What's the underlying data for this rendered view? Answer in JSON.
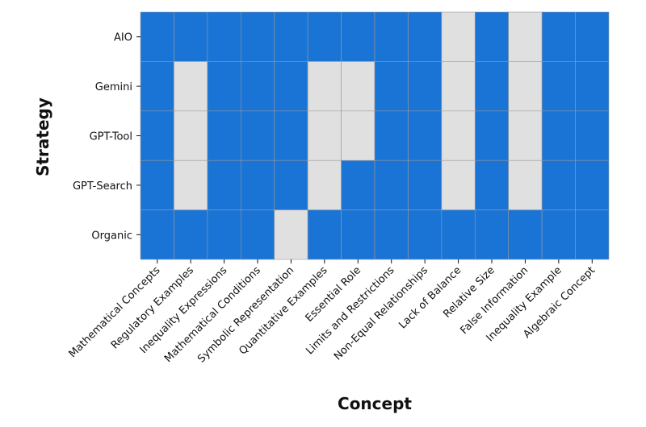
{
  "chart_data": {
    "type": "heatmap",
    "x_label": "Concept",
    "y_label": "Strategy",
    "x_categories": [
      "Mathematical Concepts",
      "Regulatory Examples",
      "Inequality Expressions",
      "Mathematical Conditions",
      "Symbolic Representation",
      "Quantitative Examples",
      "Essential Role",
      "Limits and Restrictions",
      "Non-Equal Relationships",
      "Lack of Balance",
      "Relative Size",
      "False Information",
      "Inequality Example",
      "Algebraic Concept"
    ],
    "y_categories": [
      "AIO",
      "Gemini",
      "GPT-Tool",
      "GPT-Search",
      "Organic"
    ],
    "values": [
      [
        1,
        1,
        1,
        1,
        1,
        1,
        1,
        1,
        1,
        0,
        1,
        0,
        1,
        1
      ],
      [
        1,
        0,
        1,
        1,
        1,
        0,
        0,
        1,
        1,
        0,
        1,
        0,
        1,
        1
      ],
      [
        1,
        0,
        1,
        1,
        1,
        0,
        0,
        1,
        1,
        0,
        1,
        0,
        1,
        1
      ],
      [
        1,
        0,
        1,
        1,
        1,
        0,
        1,
        1,
        1,
        0,
        1,
        0,
        1,
        1
      ],
      [
        1,
        1,
        1,
        1,
        0,
        1,
        1,
        1,
        1,
        1,
        1,
        1,
        1,
        1
      ]
    ],
    "colors": [
      "#e0e0e0",
      "#1a74d6"
    ]
  }
}
